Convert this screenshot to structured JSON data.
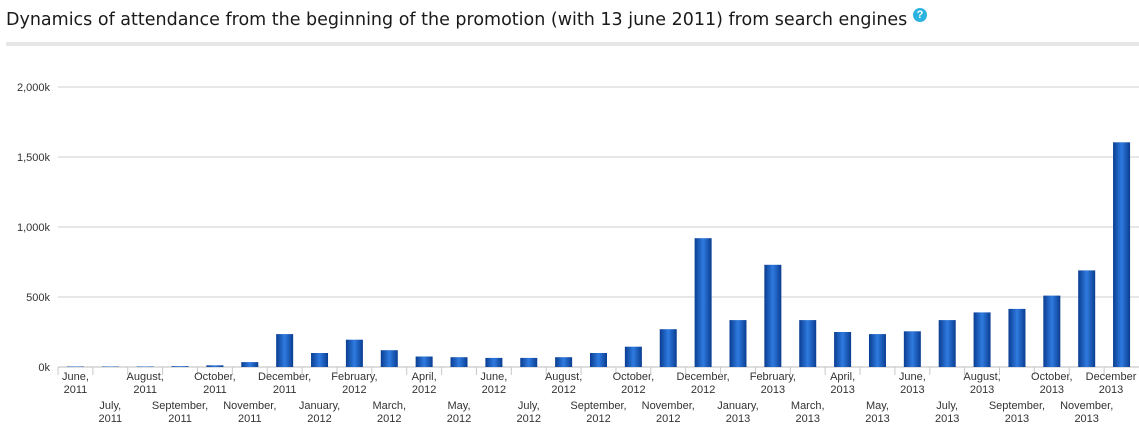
{
  "header": {
    "title": "Dynamics of attendance from the beginning of the promotion (with 13 june 2011) from search engines",
    "help_icon": "question-circle-icon",
    "help_glyph": "?"
  },
  "colors": {
    "bar_dark": "#0a3d91",
    "bar_light": "#2f7be0",
    "grid": "#cfcfcf",
    "help": "#2bb3e0"
  },
  "chart_data": {
    "type": "bar",
    "title": "Dynamics of attendance from the beginning of the promotion (with 13 june 2011) from search engines",
    "xlabel": "",
    "ylabel": "",
    "ylim": [
      0,
      2000
    ],
    "yticks": [
      "0k",
      "500k",
      "1,000k",
      "1,500k",
      "2,000k"
    ],
    "grid": true,
    "categories": [
      [
        "June,",
        "2011"
      ],
      [
        "July,",
        "2011"
      ],
      [
        "August,",
        "2011"
      ],
      [
        "September,",
        "2011"
      ],
      [
        "October,",
        "2011"
      ],
      [
        "November,",
        "2011"
      ],
      [
        "December,",
        "2011"
      ],
      [
        "January,",
        "2012"
      ],
      [
        "February,",
        "2012"
      ],
      [
        "March,",
        "2012"
      ],
      [
        "April,",
        "2012"
      ],
      [
        "May,",
        "2012"
      ],
      [
        "June,",
        "2012"
      ],
      [
        "July,",
        "2012"
      ],
      [
        "August,",
        "2012"
      ],
      [
        "September,",
        "2012"
      ],
      [
        "October,",
        "2012"
      ],
      [
        "November,",
        "2012"
      ],
      [
        "December,",
        "2012"
      ],
      [
        "January,",
        "2013"
      ],
      [
        "February,",
        "2013"
      ],
      [
        "March,",
        "2013"
      ],
      [
        "April,",
        "2013"
      ],
      [
        "May,",
        "2013"
      ],
      [
        "June,",
        "2013"
      ],
      [
        "July,",
        "2013"
      ],
      [
        "August,",
        "2013"
      ],
      [
        "September,",
        "2013"
      ],
      [
        "October,",
        "2013"
      ],
      [
        "November,",
        "2013"
      ],
      [
        "December",
        "2013"
      ]
    ],
    "values": [
      1,
      1,
      2,
      6,
      12,
      35,
      235,
      100,
      195,
      120,
      75,
      70,
      65,
      65,
      70,
      100,
      145,
      270,
      920,
      335,
      730,
      335,
      250,
      235,
      255,
      335,
      390,
      415,
      510,
      690,
      1605
    ]
  }
}
